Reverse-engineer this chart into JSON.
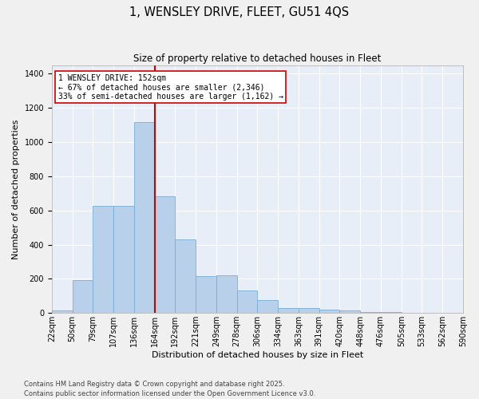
{
  "title": "1, WENSLEY DRIVE, FLEET, GU51 4QS",
  "subtitle": "Size of property relative to detached houses in Fleet",
  "xlabel": "Distribution of detached houses by size in Fleet",
  "ylabel": "Number of detached properties",
  "bar_values": [
    15,
    195,
    625,
    625,
    1115,
    685,
    430,
    215,
    220,
    130,
    78,
    30,
    30,
    20,
    14,
    7,
    5,
    3,
    2,
    1
  ],
  "categories": [
    "22sqm",
    "50sqm",
    "79sqm",
    "107sqm",
    "136sqm",
    "164sqm",
    "192sqm",
    "221sqm",
    "249sqm",
    "278sqm",
    "306sqm",
    "334sqm",
    "363sqm",
    "391sqm",
    "420sqm",
    "448sqm",
    "476sqm",
    "505sqm",
    "533sqm",
    "562sqm",
    "590sqm"
  ],
  "bar_color": "#b8d0ea",
  "bar_edgecolor": "#7aadd4",
  "bg_color": "#e8eef8",
  "grid_color": "#ffffff",
  "vline_color": "#cc0000",
  "vline_pos": 4.5,
  "annotation_text": "1 WENSLEY DRIVE: 152sqm\n← 67% of detached houses are smaller (2,346)\n33% of semi-detached houses are larger (1,162) →",
  "annotation_box_color": "#cc0000",
  "ylim": [
    0,
    1450
  ],
  "yticks": [
    0,
    200,
    400,
    600,
    800,
    1000,
    1200,
    1400
  ],
  "footer": "Contains HM Land Registry data © Crown copyright and database right 2025.\nContains public sector information licensed under the Open Government Licence v3.0.",
  "title_fontsize": 10.5,
  "subtitle_fontsize": 8.5,
  "xlabel_fontsize": 8,
  "ylabel_fontsize": 8,
  "tick_fontsize": 7,
  "annotation_fontsize": 7,
  "footer_fontsize": 6
}
